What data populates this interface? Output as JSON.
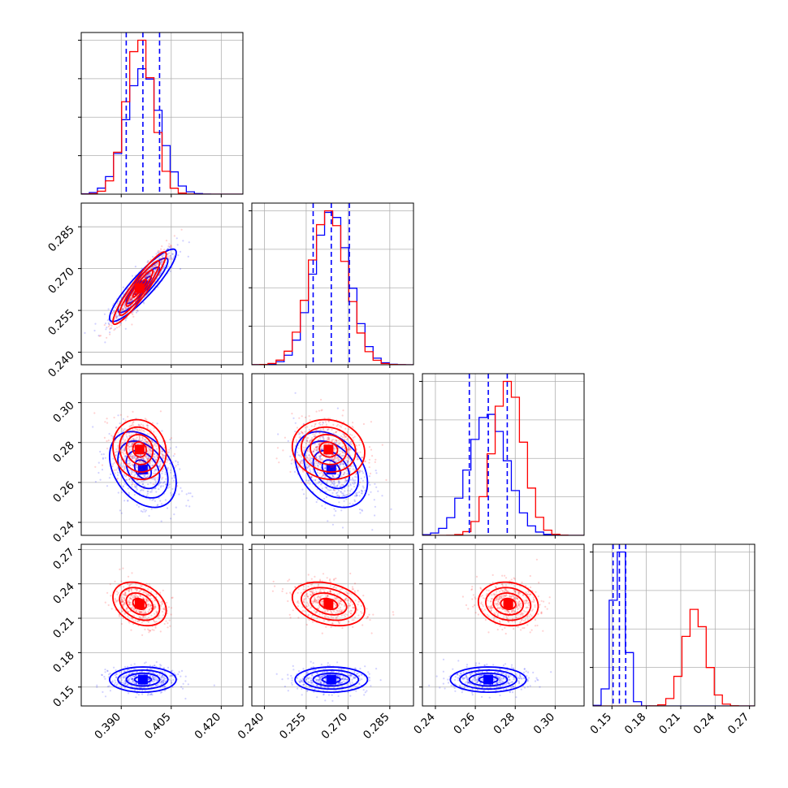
{
  "chart_data": {
    "type": "corner",
    "grid": true,
    "n_params": 4,
    "colors": {
      "sample_1": "#0000ff",
      "sample_2": "#ff0000"
    },
    "ranges": [
      [
        0.378,
        0.4265
      ],
      [
        0.2355,
        0.2935
      ],
      [
        0.2335,
        0.3145
      ],
      [
        0.1335,
        0.2745
      ]
    ],
    "ticks": [
      [
        0.39,
        0.405,
        0.42
      ],
      [
        0.24,
        0.255,
        0.27,
        0.285
      ],
      [
        0.24,
        0.26,
        0.28,
        0.3
      ],
      [
        0.15,
        0.18,
        0.21,
        0.24,
        0.27
      ]
    ],
    "tick_labels": [
      [
        "0.390",
        "0.405",
        "0.420"
      ],
      [
        "0.240",
        "0.255",
        "0.270",
        "0.285"
      ],
      [
        "0.24",
        "0.26",
        "0.28",
        "0.30"
      ],
      [
        "0.15",
        "0.18",
        "0.21",
        "0.24",
        "0.27"
      ]
    ],
    "series": [
      {
        "means": [
          0.3965,
          0.264,
          0.2665,
          0.1565
        ],
        "stds": [
          0.005,
          0.0065,
          0.0095,
          0.0055
        ]
      },
      {
        "means": [
          0.3955,
          0.263,
          0.2765,
          0.2225
        ],
        "stds": [
          0.004,
          0.0065,
          0.0075,
          0.0095
        ]
      }
    ],
    "correlations": [
      [
        [
          1,
          0
        ],
        0.9,
        0.93
      ],
      [
        [
          2,
          0
        ],
        -0.35,
        -0.1
      ],
      [
        [
          2,
          1
        ],
        -0.35,
        -0.1
      ],
      [
        [
          3,
          0
        ],
        0.0,
        -0.3
      ],
      [
        [
          3,
          1
        ],
        0.0,
        -0.3
      ],
      [
        [
          3,
          2
        ],
        0.0,
        -0.1
      ]
    ],
    "quantiles_shown": [
      0.16,
      0.5,
      0.84
    ],
    "quantile_markers": [
      [
        0.3915,
        0.3965,
        0.4015
      ],
      [
        0.2575,
        0.264,
        0.2705
      ],
      [
        0.257,
        0.2665,
        0.276
      ],
      [
        0.151,
        0.1565,
        0.162
      ]
    ]
  }
}
